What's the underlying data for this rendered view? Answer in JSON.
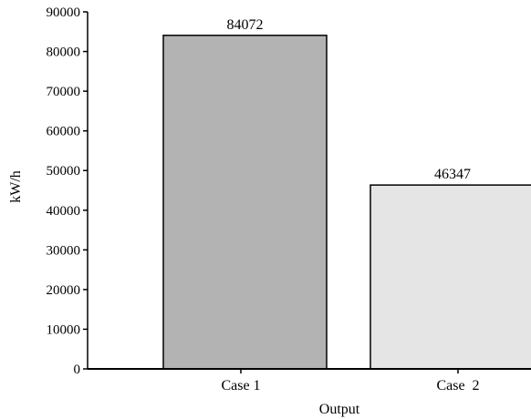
{
  "chart_data": {
    "type": "bar",
    "categories": [
      "Case 1",
      "Case  2"
    ],
    "values": [
      84072,
      46347
    ],
    "data_labels": [
      "84072",
      "46347"
    ],
    "xlabel": "Output",
    "ylabel": "kW/h",
    "ylim": [
      0,
      90000
    ],
    "yticks": [
      0,
      10000,
      20000,
      30000,
      40000,
      50000,
      60000,
      70000,
      80000,
      90000
    ],
    "grid": false,
    "legend": "none",
    "bar_colors": [
      "#b3b3b3",
      "#e5e5e5"
    ],
    "edge_color": "#000000"
  }
}
